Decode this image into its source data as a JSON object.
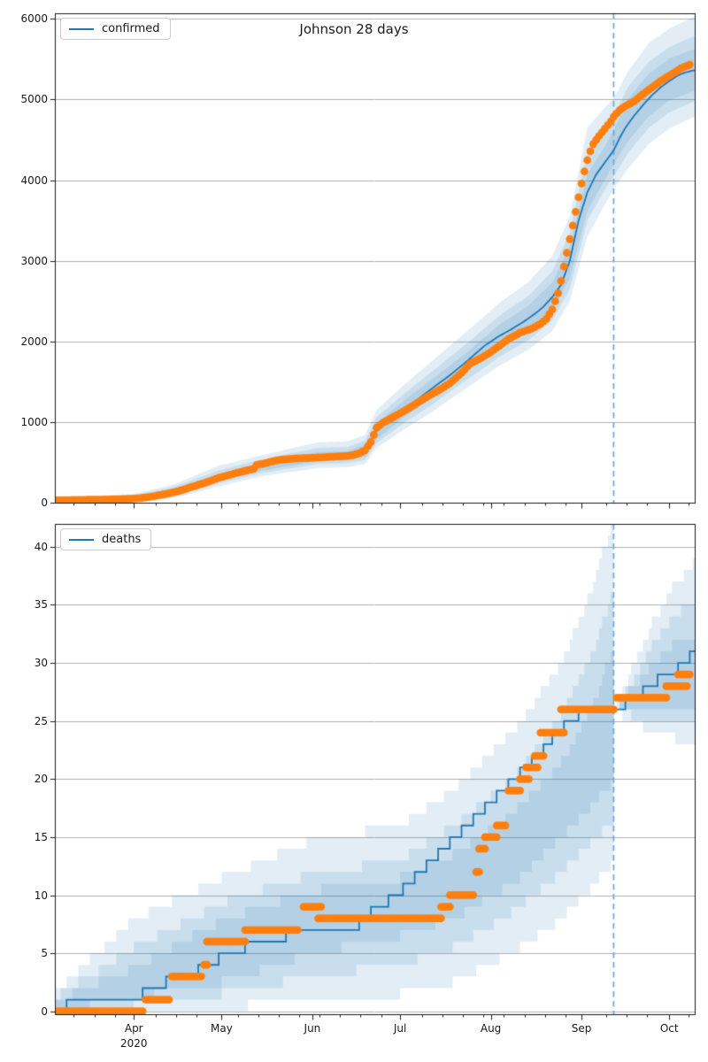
{
  "figure": {
    "title": "Johnson 28 days"
  },
  "chart_data": {
    "type": "line",
    "title": "Johnson 28 days",
    "subtitle": "",
    "grid": "horizontal",
    "legend_position": "upper-left-inside",
    "day_index_origin": "days since 2020-03-01 (x axis shows Apr-Oct 2020)",
    "x_axis": {
      "xlim_days": [
        4,
        222.7
      ],
      "tick_labels": [
        "Apr",
        "May",
        "Jun",
        "Jul",
        "Aug",
        "Sep",
        "Oct"
      ],
      "tick_days": [
        31,
        61,
        92,
        122,
        153,
        184,
        214
      ],
      "year_label": "2020",
      "minor_tick_start_day": 10.5,
      "minor_tick_interval_days": 7
    },
    "forecast_start_day": 195,
    "colors": {
      "model_line": "#1f77b4",
      "data_dots": "#ff7f0e",
      "band_fill_rgb": [
        31,
        119,
        180
      ],
      "band_alpha": 0.13,
      "gridline": "#b1b1b1",
      "forecast_vline": "#74a9d4",
      "axis_frame": "#1a1a1a"
    },
    "subplots": [
      {
        "name": "confirmed",
        "legend": "confirmed",
        "style": "smooth",
        "ylim": [
          0,
          6070
        ],
        "yticks": [
          0,
          1000,
          2000,
          3000,
          4000,
          5000,
          6000
        ],
        "model_line": [
          [
            4,
            25
          ],
          [
            20,
            35
          ],
          [
            31,
            48
          ],
          [
            40,
            95
          ],
          [
            45,
            135
          ],
          [
            50,
            190
          ],
          [
            55,
            245
          ],
          [
            60,
            310
          ],
          [
            65,
            360
          ],
          [
            70,
            405
          ],
          [
            74,
            455
          ],
          [
            78,
            505
          ],
          [
            82,
            535
          ],
          [
            88,
            552
          ],
          [
            94,
            565
          ],
          [
            100,
            578
          ],
          [
            104,
            590
          ],
          [
            107,
            610
          ],
          [
            110,
            660
          ],
          [
            112,
            760
          ],
          [
            114,
            900
          ],
          [
            117,
            1000
          ],
          [
            120,
            1070
          ],
          [
            123,
            1150
          ],
          [
            128,
            1280
          ],
          [
            133,
            1420
          ],
          [
            139,
            1580
          ],
          [
            145,
            1760
          ],
          [
            151,
            1950
          ],
          [
            156,
            2070
          ],
          [
            160,
            2150
          ],
          [
            164,
            2240
          ],
          [
            168,
            2340
          ],
          [
            171,
            2430
          ],
          [
            174,
            2550
          ],
          [
            177,
            2700
          ],
          [
            180,
            3000
          ],
          [
            183,
            3500
          ],
          [
            186,
            3850
          ],
          [
            189,
            4070
          ],
          [
            192,
            4220
          ],
          [
            194,
            4320
          ],
          [
            195,
            4370
          ],
          [
            197,
            4520
          ],
          [
            199,
            4650
          ],
          [
            202,
            4800
          ],
          [
            205,
            4930
          ],
          [
            208,
            5050
          ],
          [
            211,
            5150
          ],
          [
            214,
            5230
          ],
          [
            217,
            5300
          ],
          [
            219,
            5330
          ],
          [
            222,
            5360
          ]
        ],
        "data_dots": [
          [
            4,
            30
          ],
          [
            12,
            34
          ],
          [
            20,
            38
          ],
          [
            27,
            44
          ],
          [
            31,
            50
          ],
          [
            35,
            64
          ],
          [
            39,
            88
          ],
          [
            42,
            108
          ],
          [
            45,
            132
          ],
          [
            48,
            162
          ],
          [
            50,
            188
          ],
          [
            52,
            208
          ],
          [
            54,
            232
          ],
          [
            56,
            255
          ],
          [
            58,
            280
          ],
          [
            60,
            308
          ],
          [
            63,
            338
          ],
          [
            66,
            368
          ],
          [
            69,
            395
          ],
          [
            72,
            420
          ],
          [
            73,
            468
          ],
          [
            76,
            490
          ],
          [
            79,
            518
          ],
          [
            82,
            536
          ],
          [
            86,
            547
          ],
          [
            90,
            554
          ],
          [
            94,
            560
          ],
          [
            98,
            568
          ],
          [
            102,
            576
          ],
          [
            104,
            581
          ],
          [
            106,
            590
          ],
          [
            108,
            612
          ],
          [
            110,
            650
          ],
          [
            112,
            752
          ],
          [
            114,
            930
          ],
          [
            116,
            988
          ],
          [
            119,
            1048
          ],
          [
            123,
            1130
          ],
          [
            127,
            1218
          ],
          [
            131,
            1308
          ],
          [
            135,
            1390
          ],
          [
            139,
            1480
          ],
          [
            143,
            1608
          ],
          [
            146,
            1728
          ],
          [
            150,
            1800
          ],
          [
            153,
            1868
          ],
          [
            156,
            1948
          ],
          [
            159,
            2028
          ],
          [
            163,
            2108
          ],
          [
            167,
            2158
          ],
          [
            170,
            2218
          ],
          [
            172,
            2278
          ],
          [
            174,
            2398
          ],
          [
            176,
            2598
          ],
          [
            177,
            2748
          ],
          [
            178,
            2928
          ],
          [
            179,
            3098
          ],
          [
            180,
            3268
          ],
          [
            181,
            3438
          ],
          [
            182,
            3608
          ],
          [
            183,
            3788
          ],
          [
            184,
            3958
          ],
          [
            185,
            4108
          ],
          [
            186,
            4248
          ],
          [
            187,
            4358
          ],
          [
            188,
            4448
          ],
          [
            190,
            4548
          ],
          [
            192,
            4638
          ],
          [
            194,
            4728
          ],
          [
            195,
            4788
          ],
          [
            197,
            4868
          ],
          [
            199,
            4918
          ],
          [
            202,
            4978
          ],
          [
            205,
            5068
          ],
          [
            208,
            5148
          ],
          [
            211,
            5228
          ],
          [
            214,
            5298
          ],
          [
            216,
            5338
          ],
          [
            218,
            5388
          ],
          [
            220,
            5418
          ],
          [
            221,
            5432
          ]
        ],
        "bands": {
          "days": [
            4,
            31,
            45,
            60,
            75,
            94,
            104,
            110,
            114,
            123,
            133,
            145,
            156,
            166,
            174,
            180,
            186,
            192,
            195,
            200,
            207,
            214,
            222
          ],
          "outer_lo": [
            0,
            10,
            60,
            200,
            330,
            430,
            440,
            480,
            680,
            900,
            1130,
            1430,
            1700,
            1900,
            2130,
            2500,
            3300,
            3700,
            3890,
            4150,
            4450,
            4640,
            4780
          ],
          "outer_hi": [
            60,
            110,
            230,
            460,
            590,
            750,
            760,
            840,
            1150,
            1450,
            1760,
            2130,
            2480,
            2740,
            3060,
            3550,
            4650,
            4900,
            5020,
            5350,
            5700,
            5880,
            6020
          ],
          "mid_lo": [
            5,
            18,
            80,
            240,
            370,
            480,
            490,
            530,
            740,
            980,
            1220,
            1530,
            1810,
            2020,
            2260,
            2650,
            3500,
            3880,
            4050,
            4340,
            4650,
            4840,
            4970
          ],
          "mid_hi": [
            50,
            90,
            200,
            400,
            540,
            680,
            690,
            770,
            1060,
            1340,
            1630,
            1980,
            2320,
            2570,
            2870,
            3350,
            4350,
            4620,
            4800,
            5160,
            5470,
            5650,
            5780
          ],
          "inner_lo": [
            10,
            25,
            95,
            270,
            400,
            515,
            525,
            570,
            790,
            1050,
            1300,
            1630,
            1920,
            2140,
            2390,
            2780,
            3620,
            4000,
            4200,
            4490,
            4790,
            4990,
            5100
          ],
          "inner_hi": [
            42,
            75,
            175,
            355,
            495,
            630,
            640,
            720,
            990,
            1260,
            1530,
            1870,
            2210,
            2450,
            2730,
            3180,
            4080,
            4420,
            4620,
            5010,
            5320,
            5510,
            5620
          ]
        }
      },
      {
        "name": "deaths",
        "legend": "deaths",
        "style": "step",
        "ylim": [
          -0.25,
          41.97
        ],
        "yticks": [
          0,
          5,
          10,
          15,
          20,
          25,
          30,
          35,
          40
        ],
        "model_steps": [
          [
            4,
            0
          ],
          [
            8,
            1
          ],
          [
            34,
            2
          ],
          [
            42,
            3
          ],
          [
            53,
            4
          ],
          [
            60,
            5
          ],
          [
            69,
            6
          ],
          [
            83,
            7
          ],
          [
            108,
            8
          ],
          [
            112,
            9
          ],
          [
            118,
            10
          ],
          [
            123,
            11
          ],
          [
            127,
            12
          ],
          [
            131,
            13
          ],
          [
            135,
            14
          ],
          [
            139,
            15
          ],
          [
            143,
            16
          ],
          [
            147,
            17
          ],
          [
            151,
            18
          ],
          [
            155,
            19
          ],
          [
            159,
            20
          ],
          [
            163,
            21
          ],
          [
            167,
            22
          ],
          [
            171,
            23
          ],
          [
            174,
            24
          ],
          [
            178,
            25
          ],
          [
            183,
            26
          ],
          [
            199,
            27
          ],
          [
            205,
            28
          ],
          [
            210,
            29
          ],
          [
            217,
            30
          ],
          [
            221,
            31
          ]
        ],
        "data_dot_segments": [
          [
            4,
            34,
            0
          ],
          [
            35,
            43,
            1
          ],
          [
            44,
            54,
            3
          ],
          [
            55,
            56,
            4
          ],
          [
            56,
            69,
            6
          ],
          [
            69,
            87,
            7
          ],
          [
            89,
            95,
            9
          ],
          [
            94,
            136,
            8
          ],
          [
            136,
            139,
            9
          ],
          [
            139,
            147,
            10
          ],
          [
            148,
            149,
            12
          ],
          [
            149,
            151,
            14
          ],
          [
            151,
            155,
            15
          ],
          [
            155,
            158,
            16
          ],
          [
            159,
            163,
            19
          ],
          [
            163,
            166,
            20
          ],
          [
            165,
            169,
            21
          ],
          [
            168,
            171,
            22
          ],
          [
            170,
            178,
            24
          ],
          [
            177,
            195,
            26
          ],
          [
            196,
            213,
            27
          ],
          [
            213,
            220,
            28
          ],
          [
            217,
            221,
            29
          ]
        ],
        "bands_insample": {
          "days": [
            4,
            31,
            61,
            92,
            122,
            140,
            160,
            177,
            188,
            195
          ],
          "outer_lo": [
            0,
            0,
            0.3,
            1,
            1.5,
            2.5,
            5,
            8,
            11,
            13
          ],
          "outer_hi": [
            1.8,
            8,
            11.5,
            14.8,
            16,
            19,
            24,
            30,
            37,
            43
          ],
          "mid_lo": [
            0,
            0.5,
            1.5,
            3,
            4,
            5.5,
            8.5,
            12,
            15,
            16.5
          ],
          "mid_hi": [
            1.3,
            5.5,
            9.4,
            11.9,
            13,
            16,
            20,
            25.5,
            31,
            37
          ],
          "inner_lo": [
            0,
            1.2,
            2.5,
            5,
            6.5,
            8,
            11,
            15,
            18,
            20
          ],
          "inner_hi": [
            0.9,
            3.8,
            7.9,
            10.4,
            11.5,
            13.5,
            17,
            21.5,
            26.5,
            32
          ]
        },
        "bands_forecast": {
          "days": [
            195,
            200,
            208,
            215,
            222.7
          ],
          "outer_lo": [
            26,
            25,
            24,
            23.5,
            23
          ],
          "outer_hi": [
            26,
            29,
            33.5,
            36.5,
            39
          ],
          "mid_lo": [
            26,
            25.5,
            25,
            25,
            24.5
          ],
          "mid_hi": [
            26,
            28,
            31.5,
            34,
            35.5
          ],
          "inner_lo": [
            26,
            26,
            26,
            26,
            26
          ],
          "inner_hi": [
            26,
            27.5,
            30,
            31.5,
            32.5
          ]
        }
      }
    ]
  }
}
